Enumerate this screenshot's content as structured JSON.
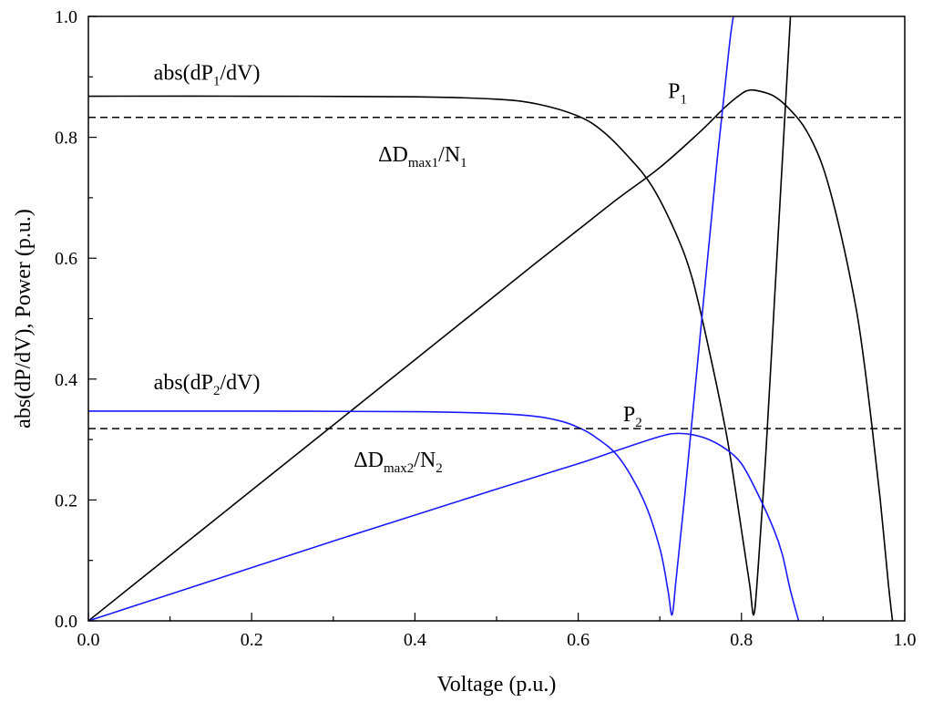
{
  "chart_data": {
    "type": "line",
    "xlabel": "Voltage (p.u.)",
    "ylabel": "abs(dP/dV), Power (p.u.)",
    "xlim": [
      0,
      1
    ],
    "ylim": [
      0,
      1
    ],
    "x_ticks": [
      "0.0",
      "0.2",
      "0.4",
      "0.6",
      "0.8",
      "1.0"
    ],
    "y_ticks": [
      "0.0",
      "0.2",
      "0.4",
      "0.6",
      "0.8",
      "1.0"
    ],
    "grid": false,
    "colors": {
      "black": "#000000",
      "blue": "#1a1aff"
    },
    "series": [
      {
        "color": "#000000",
        "style": "solid",
        "points": [
          [
            0.0,
            0.0
          ],
          [
            0.1,
            0.108
          ],
          [
            0.2,
            0.216
          ],
          [
            0.3,
            0.324
          ],
          [
            0.4,
            0.432
          ],
          [
            0.5,
            0.54
          ],
          [
            0.55,
            0.594
          ],
          [
            0.6,
            0.647
          ],
          [
            0.65,
            0.7
          ],
          [
            0.7,
            0.75
          ],
          [
            0.75,
            0.81
          ],
          [
            0.78,
            0.85
          ],
          [
            0.8,
            0.872
          ],
          [
            0.81,
            0.878
          ],
          [
            0.82,
            0.877
          ],
          [
            0.84,
            0.868
          ],
          [
            0.86,
            0.845
          ],
          [
            0.88,
            0.81
          ],
          [
            0.9,
            0.75
          ],
          [
            0.92,
            0.65
          ],
          [
            0.94,
            0.52
          ],
          [
            0.95,
            0.43
          ],
          [
            0.96,
            0.32
          ],
          [
            0.97,
            0.2
          ],
          [
            0.98,
            0.06
          ],
          [
            0.985,
            0.0
          ]
        ]
      },
      {
        "color": "#000000",
        "style": "solid",
        "points": [
          [
            0.0,
            0.868
          ],
          [
            0.2,
            0.868
          ],
          [
            0.4,
            0.867
          ],
          [
            0.5,
            0.863
          ],
          [
            0.55,
            0.855
          ],
          [
            0.6,
            0.835
          ],
          [
            0.63,
            0.81
          ],
          [
            0.66,
            0.77
          ],
          [
            0.69,
            0.72
          ],
          [
            0.72,
            0.64
          ],
          [
            0.74,
            0.565
          ],
          [
            0.76,
            0.45
          ],
          [
            0.78,
            0.32
          ],
          [
            0.79,
            0.24
          ],
          [
            0.8,
            0.15
          ],
          [
            0.81,
            0.06
          ],
          [
            0.815,
            0.01
          ],
          [
            0.82,
            0.08
          ],
          [
            0.83,
            0.28
          ],
          [
            0.84,
            0.52
          ],
          [
            0.85,
            0.76
          ],
          [
            0.86,
            1.0
          ]
        ]
      },
      {
        "color": "#1a1aff",
        "style": "solid",
        "points": [
          [
            0.0,
            0.0
          ],
          [
            0.1,
            0.044
          ],
          [
            0.2,
            0.088
          ],
          [
            0.3,
            0.132
          ],
          [
            0.4,
            0.175
          ],
          [
            0.5,
            0.218
          ],
          [
            0.6,
            0.26
          ],
          [
            0.65,
            0.283
          ],
          [
            0.7,
            0.305
          ],
          [
            0.72,
            0.31
          ],
          [
            0.74,
            0.308
          ],
          [
            0.76,
            0.3
          ],
          [
            0.78,
            0.285
          ],
          [
            0.8,
            0.26
          ],
          [
            0.82,
            0.21
          ],
          [
            0.84,
            0.15
          ],
          [
            0.85,
            0.11
          ],
          [
            0.86,
            0.05
          ],
          [
            0.87,
            0.0
          ]
        ]
      },
      {
        "color": "#1a1aff",
        "style": "solid",
        "points": [
          [
            0.0,
            0.347
          ],
          [
            0.2,
            0.347
          ],
          [
            0.4,
            0.346
          ],
          [
            0.5,
            0.343
          ],
          [
            0.55,
            0.338
          ],
          [
            0.58,
            0.33
          ],
          [
            0.6,
            0.32
          ],
          [
            0.62,
            0.305
          ],
          [
            0.65,
            0.27
          ],
          [
            0.68,
            0.2
          ],
          [
            0.7,
            0.12
          ],
          [
            0.71,
            0.05
          ],
          [
            0.715,
            0.01
          ],
          [
            0.72,
            0.07
          ],
          [
            0.73,
            0.2
          ],
          [
            0.75,
            0.48
          ],
          [
            0.77,
            0.76
          ],
          [
            0.785,
            0.95
          ],
          [
            0.79,
            1.0
          ]
        ]
      },
      {
        "color": "#000000",
        "style": "dashed",
        "points": [
          [
            0.0,
            0.833
          ],
          [
            1.0,
            0.833
          ]
        ]
      },
      {
        "color": "#000000",
        "style": "dashed",
        "points": [
          [
            0.0,
            0.318
          ],
          [
            1.0,
            0.318
          ]
        ]
      }
    ],
    "annotations": [
      {
        "name": "annot-abs-dp1",
        "parts": [
          [
            "abs(dP",
            false
          ],
          [
            "1",
            true
          ],
          [
            "/dV)",
            false
          ]
        ],
        "x": 0.08,
        "y": 0.895
      },
      {
        "name": "annot-p1",
        "parts": [
          [
            "P",
            false
          ],
          [
            "1",
            true
          ]
        ],
        "x": 0.71,
        "y": 0.865
      },
      {
        "name": "annot-ddmax1",
        "parts": [
          [
            "ΔD",
            false
          ],
          [
            "max1",
            true
          ],
          [
            "/N",
            false
          ],
          [
            "1",
            true
          ]
        ],
        "x": 0.355,
        "y": 0.76
      },
      {
        "name": "annot-abs-dp2",
        "parts": [
          [
            "abs(dP",
            false
          ],
          [
            "2",
            true
          ],
          [
            "/dV)",
            false
          ]
        ],
        "x": 0.08,
        "y": 0.383
      },
      {
        "name": "annot-p2",
        "parts": [
          [
            "P",
            false
          ],
          [
            "2",
            true
          ]
        ],
        "x": 0.655,
        "y": 0.33
      },
      {
        "name": "annot-ddmax2",
        "parts": [
          [
            "ΔD",
            false
          ],
          [
            "max2",
            true
          ],
          [
            "/N",
            false
          ],
          [
            "2",
            true
          ]
        ],
        "x": 0.325,
        "y": 0.255
      }
    ]
  }
}
